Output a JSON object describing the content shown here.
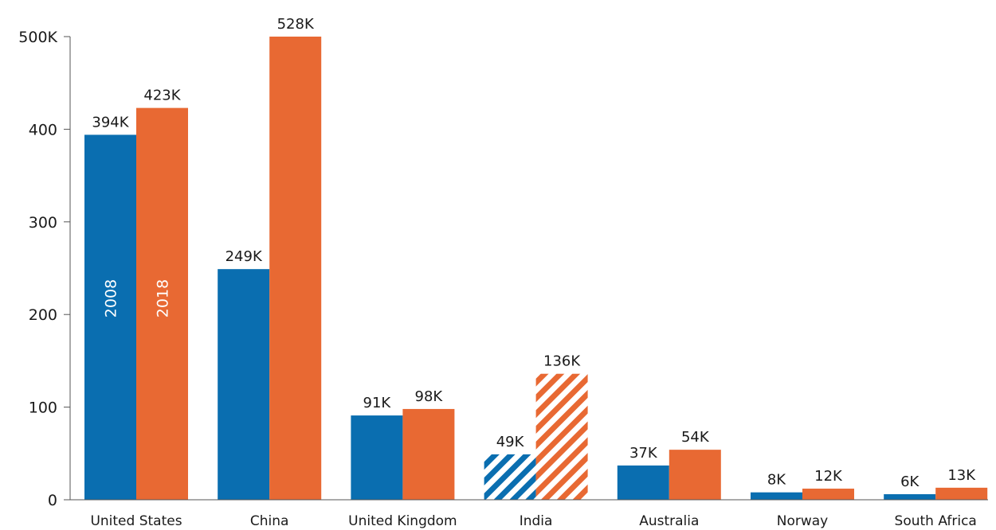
{
  "chart_data": {
    "type": "bar",
    "categories": [
      "United States",
      "China",
      "United Kingdom",
      "India",
      "Australia",
      "Norway",
      "South Africa"
    ],
    "series": [
      {
        "name": "2008",
        "color": "#0a6eb0",
        "values": [
          394,
          249,
          91,
          49,
          37,
          8,
          6
        ],
        "labels": [
          "394K",
          "249K",
          "91K",
          "49K",
          "37K",
          "8K",
          "6K"
        ],
        "hatched": [
          false,
          false,
          false,
          true,
          false,
          false,
          false
        ]
      },
      {
        "name": "2018",
        "color": "#e86933",
        "values": [
          423,
          528,
          98,
          136,
          54,
          12,
          13
        ],
        "labels": [
          "423K",
          "528K",
          "98K",
          "136K",
          "54K",
          "12K",
          "13K"
        ],
        "hatched": [
          false,
          false,
          false,
          true,
          false,
          false,
          false
        ]
      }
    ],
    "ylim": [
      0,
      500
    ],
    "y_ticks": [
      0,
      100,
      200,
      300,
      400,
      500
    ],
    "y_tick_labels": [
      "0",
      "100",
      "200",
      "300",
      "400",
      "500K"
    ],
    "xlabel": "",
    "ylabel": "",
    "title": "",
    "grid": false,
    "legend": "in-bar labels on first category",
    "clipped_at_axis_max": true
  }
}
